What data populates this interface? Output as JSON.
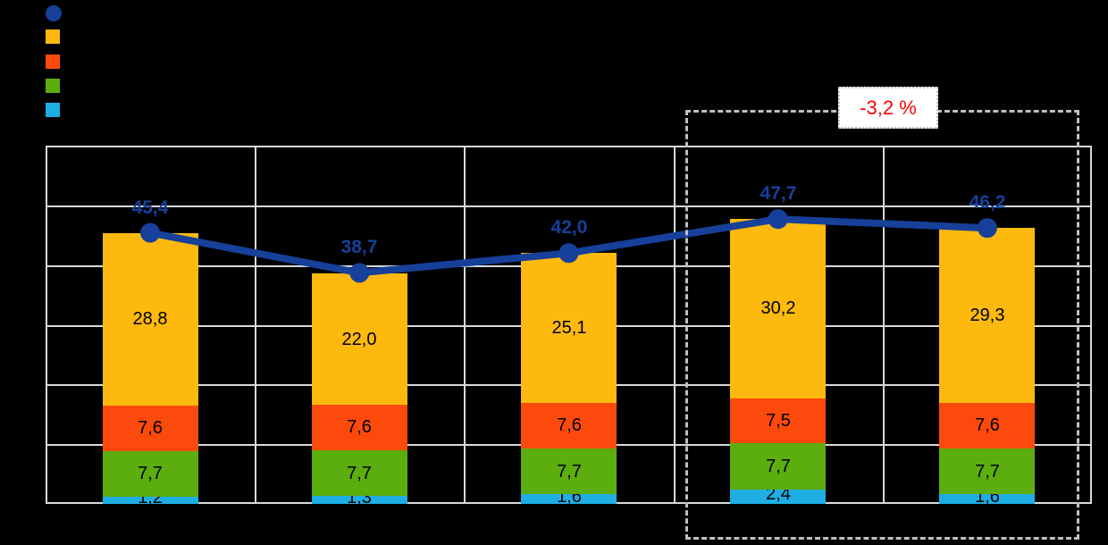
{
  "background": "#000000",
  "legend": {
    "items": [
      {
        "id": "total-line",
        "marker": "circle",
        "color": "#16409A",
        "label": ""
      },
      {
        "id": "amber-series",
        "marker": "square",
        "color": "#FDB90D",
        "label": ""
      },
      {
        "id": "red-series",
        "marker": "square",
        "color": "#FB4A0C",
        "label": ""
      },
      {
        "id": "green-series",
        "marker": "square",
        "color": "#5CAD0E",
        "label": ""
      },
      {
        "id": "cyan-series",
        "marker": "square",
        "color": "#1EAEE4",
        "label": ""
      }
    ]
  },
  "chart_data": {
    "type": "bar",
    "subtype": "stacked-bars-with-total-line",
    "categories": [
      "",
      "",
      "",
      "",
      ""
    ],
    "series": [
      {
        "name": "cyan-series",
        "color": "#1EAEE4",
        "values": [
          1.2,
          1.3,
          1.6,
          2.4,
          1.6
        ],
        "labels": [
          "1,2",
          "1,3",
          "1,6",
          "2,4",
          "1,6"
        ]
      },
      {
        "name": "green-series",
        "color": "#5CAD0E",
        "values": [
          7.7,
          7.7,
          7.7,
          7.7,
          7.7
        ],
        "labels": [
          "7,7",
          "7,7",
          "7,7",
          "7,7",
          "7,7"
        ]
      },
      {
        "name": "red-series",
        "color": "#FB4A0C",
        "values": [
          7.6,
          7.6,
          7.6,
          7.5,
          7.6
        ],
        "labels": [
          "7,6",
          "7,6",
          "7,6",
          "7,5",
          "7,6"
        ]
      },
      {
        "name": "amber-series",
        "color": "#FDB90D",
        "values": [
          28.8,
          22.0,
          25.1,
          30.2,
          29.3
        ],
        "labels": [
          "28,8",
          "22,0",
          "25,1",
          "30,2",
          "29,3"
        ]
      }
    ],
    "line": {
      "name": "total-line",
      "color": "#16409A",
      "values": [
        45.4,
        38.7,
        42.0,
        47.7,
        46.2
      ],
      "labels": [
        "45,4",
        "38,7",
        "42,0",
        "47,7",
        "46,2"
      ]
    },
    "ylim": [
      0,
      60
    ],
    "grid": true,
    "gridline_color": "#D9D9D9",
    "bar_label_color": "#000000"
  },
  "annotation": {
    "label": "-3,2 %",
    "label_color": "#FF0000",
    "box_bg": "#FFFFFF",
    "dashed_color": "#C0C0C0"
  }
}
